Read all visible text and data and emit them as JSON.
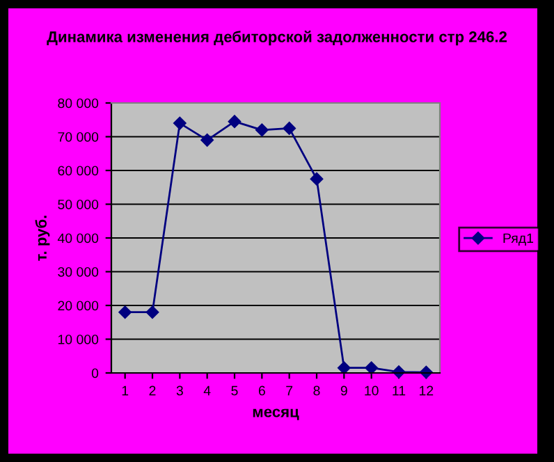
{
  "chart_data": {
    "type": "line",
    "title": "Динамика изменения дебиторской задолженности стр 246.2",
    "xlabel": "месяц",
    "ylabel": "т. руб.",
    "categories": [
      "1",
      "2",
      "3",
      "4",
      "5",
      "6",
      "7",
      "8",
      "9",
      "10",
      "11",
      "12"
    ],
    "series": [
      {
        "name": "Ряд1",
        "color": "#000080",
        "values": [
          18000,
          18000,
          74000,
          69000,
          74500,
          72000,
          72500,
          57500,
          1500,
          1500,
          300,
          200
        ]
      }
    ],
    "ylim": [
      0,
      80000
    ],
    "yticks": [
      {
        "value": 0,
        "label": "0"
      },
      {
        "value": 10000,
        "label": "10 000"
      },
      {
        "value": 20000,
        "label": "20 000"
      },
      {
        "value": 30000,
        "label": "30 000"
      },
      {
        "value": 40000,
        "label": "40 000"
      },
      {
        "value": 50000,
        "label": "50 000"
      },
      {
        "value": 60000,
        "label": "60 000"
      },
      {
        "value": 70000,
        "label": "70 000"
      },
      {
        "value": 80000,
        "label": "80 000"
      }
    ],
    "grid": "y",
    "legend": "right",
    "marker": "diamond",
    "line_style": "solid"
  }
}
